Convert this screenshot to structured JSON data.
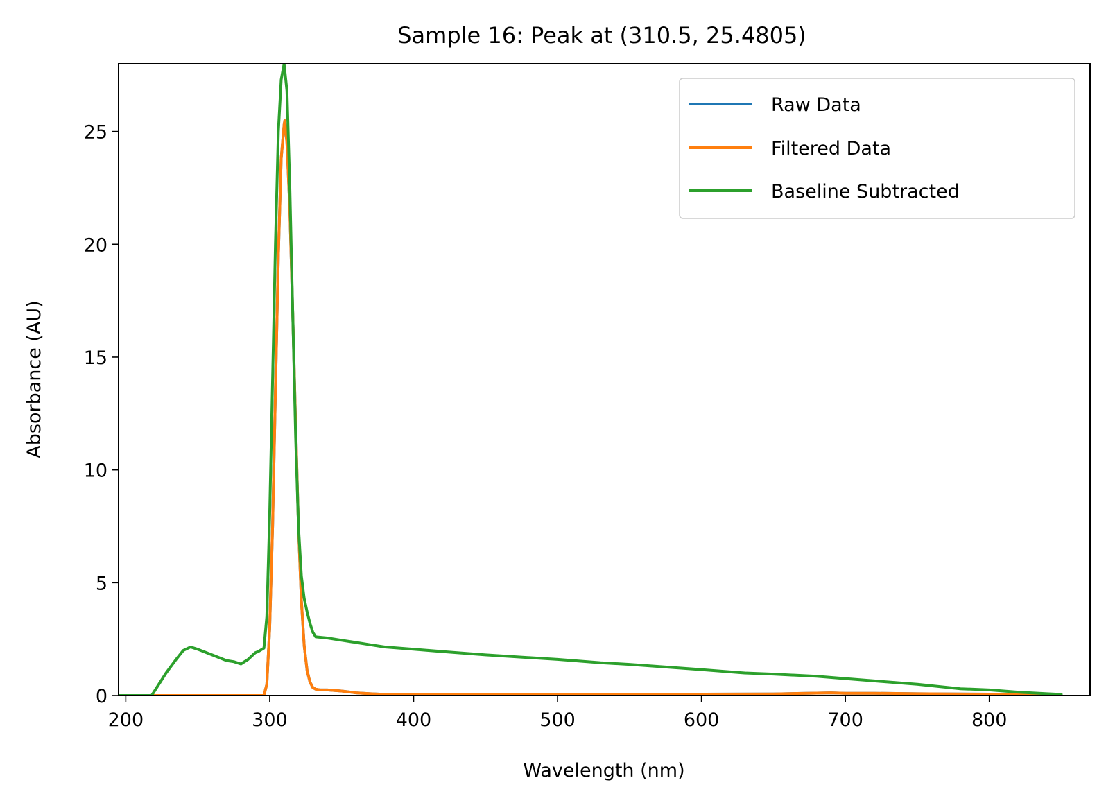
{
  "chart_data": {
    "type": "line",
    "title": "Sample 16: Peak at (310.5, 25.4805)",
    "xlabel": "Wavelength (nm)",
    "ylabel": "Absorbance (AU)",
    "xlim": [
      195,
      870
    ],
    "ylim": [
      0,
      28
    ],
    "xticks": [
      200,
      300,
      400,
      500,
      600,
      700,
      800
    ],
    "yticks": [
      0,
      5,
      10,
      15,
      20,
      25
    ],
    "grid": false,
    "legend_position": "top-right",
    "series": [
      {
        "name": "Raw Data",
        "color": "#1f77b4",
        "x": [
          195,
          296,
          298,
          300,
          302,
          304,
          306,
          308,
          310,
          310.5,
          312,
          314,
          316,
          318,
          320,
          322,
          324,
          326,
          328,
          330,
          332,
          335,
          340,
          350,
          360,
          370,
          380,
          400,
          450,
          500,
          550,
          600,
          650,
          690,
          700,
          720,
          750,
          800,
          840,
          850
        ],
        "y": [
          0,
          0,
          0.5,
          3.0,
          7.5,
          13.5,
          19.5,
          23.8,
          25.3,
          25.48,
          24.5,
          21.5,
          17.0,
          12.0,
          7.5,
          4.2,
          2.2,
          1.1,
          0.6,
          0.35,
          0.28,
          0.25,
          0.25,
          0.2,
          0.12,
          0.08,
          0.05,
          0.03,
          0.05,
          0.05,
          0.05,
          0.06,
          0.07,
          0.12,
          0.1,
          0.1,
          0.08,
          0.06,
          0.05,
          0.0
        ]
      },
      {
        "name": "Filtered Data",
        "color": "#ff7f0e",
        "x": [
          195,
          296,
          298,
          300,
          302,
          304,
          306,
          308,
          310,
          310.5,
          312,
          314,
          316,
          318,
          320,
          322,
          324,
          326,
          328,
          330,
          332,
          335,
          340,
          350,
          360,
          370,
          380,
          400,
          450,
          500,
          550,
          600,
          650,
          690,
          700,
          720,
          750,
          800,
          840,
          850
        ],
        "y": [
          0,
          0,
          0.5,
          3.0,
          7.5,
          13.5,
          19.5,
          23.8,
          25.3,
          25.48,
          24.5,
          21.5,
          17.0,
          12.0,
          7.5,
          4.2,
          2.2,
          1.1,
          0.6,
          0.35,
          0.28,
          0.25,
          0.25,
          0.2,
          0.12,
          0.08,
          0.05,
          0.03,
          0.05,
          0.05,
          0.05,
          0.06,
          0.07,
          0.12,
          0.1,
          0.1,
          0.08,
          0.06,
          0.05,
          0.0
        ]
      },
      {
        "name": "Baseline Subtracted",
        "color": "#2ca02c",
        "x": [
          195,
          218,
          222,
          228,
          235,
          240,
          245,
          250,
          260,
          270,
          275,
          280,
          285,
          290,
          292,
          296,
          298,
          300,
          302,
          304,
          306,
          308,
          310,
          312,
          314,
          316,
          318,
          320,
          322,
          324,
          326,
          328,
          330,
          332,
          340,
          350,
          360,
          370,
          380,
          400,
          420,
          450,
          500,
          530,
          550,
          600,
          630,
          650,
          680,
          700,
          720,
          750,
          780,
          800,
          820,
          840,
          850
        ],
        "y": [
          0,
          0,
          0.4,
          1.0,
          1.6,
          2.0,
          2.15,
          2.05,
          1.8,
          1.55,
          1.5,
          1.4,
          1.6,
          1.9,
          1.95,
          2.1,
          3.5,
          8.0,
          14.0,
          20.0,
          25.0,
          27.3,
          28.0,
          26.8,
          22.5,
          17.0,
          11.5,
          7.5,
          5.3,
          4.3,
          3.7,
          3.2,
          2.8,
          2.6,
          2.55,
          2.45,
          2.35,
          2.25,
          2.15,
          2.05,
          1.95,
          1.8,
          1.6,
          1.45,
          1.38,
          1.15,
          1.0,
          0.95,
          0.85,
          0.75,
          0.65,
          0.5,
          0.3,
          0.25,
          0.15,
          0.08,
          0.05
        ]
      }
    ]
  }
}
